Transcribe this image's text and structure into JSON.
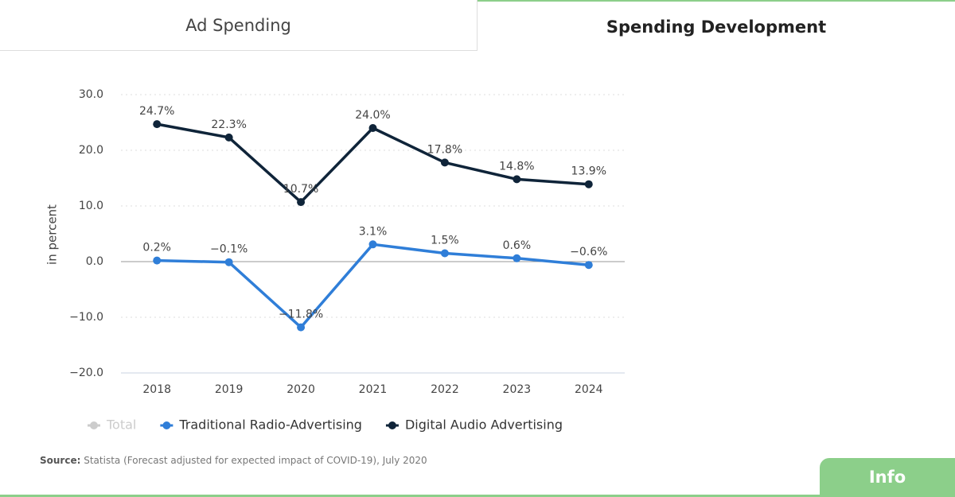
{
  "tabs": [
    "Ad Spending",
    "Spending Development"
  ],
  "chart_data": {
    "type": "line",
    "y_axis_label": "in percent",
    "categories": [
      "2018",
      "2019",
      "2020",
      "2021",
      "2022",
      "2023",
      "2024"
    ],
    "ylim": [
      -20,
      30
    ],
    "yticks": [
      {
        "value": -20,
        "label": "−20.0"
      },
      {
        "value": -10,
        "label": "−10.0"
      },
      {
        "value": 0,
        "label": "0.0"
      },
      {
        "value": 10,
        "label": "10.0"
      },
      {
        "value": 20,
        "label": "20.0"
      },
      {
        "value": 30,
        "label": "30.0"
      }
    ],
    "grid": true,
    "hidden_series": [
      {
        "name": "Total",
        "color": "#cccccc"
      }
    ],
    "series": [
      {
        "name": "Traditional Radio-Advertising",
        "color": "#2f7ed8",
        "values": [
          0.2,
          -0.1,
          -11.8,
          3.1,
          1.5,
          0.6,
          -0.6
        ],
        "value_labels": [
          "0.2%",
          "−0.1%",
          "−11.8%",
          "3.1%",
          "1.5%",
          "0.6%",
          "−0.6%"
        ]
      },
      {
        "name": "Digital Audio Advertising",
        "color": "#0f2439",
        "values": [
          24.7,
          22.3,
          10.7,
          24.0,
          17.8,
          14.8,
          13.9
        ],
        "value_labels": [
          "24.7%",
          "22.3%",
          "10.7%",
          "24.0%",
          "17.8%",
          "14.8%",
          "13.9%"
        ]
      }
    ]
  },
  "source": {
    "label": "Source:",
    "text": "Statista (Forecast adjusted for expected impact of COVID-19), July 2020"
  },
  "info_button": "Info"
}
